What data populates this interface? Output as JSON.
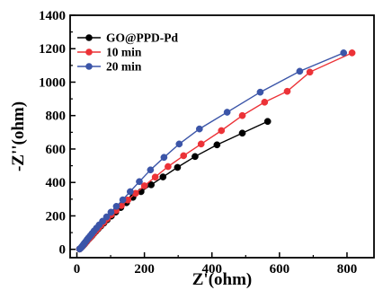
{
  "chart_data": {
    "type": "scatter",
    "xlabel": "Z'(ohm)",
    "ylabel": "-Z''(ohm)",
    "xlim": [
      -20,
      880
    ],
    "ylim": [
      -50,
      1400
    ],
    "xticks": [
      "0",
      "200",
      "400",
      "600",
      "800"
    ],
    "yticks": [
      "0",
      "200",
      "400",
      "600",
      "800",
      "1000",
      "1200",
      "1400"
    ],
    "xtick_values": [
      0,
      200,
      400,
      600,
      800
    ],
    "ytick_values": [
      0,
      200,
      400,
      600,
      800,
      1000,
      1200,
      1400
    ],
    "legend_position": "top-left",
    "series": [
      {
        "name": "GO@PPD-Pd",
        "color": "#000000",
        "x": [
          8,
          10,
          12,
          14,
          16,
          18,
          20,
          22,
          25,
          28,
          31,
          35,
          40,
          45,
          50,
          56,
          63,
          71,
          80,
          90,
          102,
          115,
          130,
          147,
          166,
          190,
          220,
          255,
          298,
          350,
          415,
          490,
          565
        ],
        "y": [
          2,
          5,
          9,
          13,
          17,
          21,
          26,
          31,
          37,
          44,
          52,
          61,
          71,
          82,
          94,
          107,
          122,
          139,
          157,
          177,
          199,
          223,
          250,
          279,
          311,
          345,
          386,
          433,
          490,
          555,
          625,
          695,
          765
        ]
      },
      {
        "name": "10 min",
        "color": "#ec3237",
        "x": [
          8,
          10,
          12,
          14,
          16,
          18,
          20,
          22,
          25,
          28,
          31,
          35,
          40,
          45,
          50,
          56,
          63,
          71,
          80,
          90,
          102,
          116,
          132,
          151,
          174,
          200,
          232,
          270,
          316,
          368,
          428,
          490,
          556,
          623,
          690,
          815
        ],
        "y": [
          2,
          5,
          9,
          13,
          17,
          22,
          27,
          32,
          38,
          45,
          53,
          62,
          72,
          84,
          96,
          110,
          125,
          143,
          162,
          183,
          207,
          232,
          262,
          295,
          335,
          380,
          432,
          495,
          560,
          630,
          710,
          800,
          880,
          945,
          1060,
          1175
        ]
      },
      {
        "name": "20 min",
        "color": "#3b55a8",
        "x": [
          8,
          10,
          12,
          14,
          16,
          18,
          20,
          22,
          25,
          28,
          31,
          35,
          40,
          45,
          51,
          58,
          66,
          76,
          88,
          101,
          117,
          136,
          158,
          185,
          218,
          258,
          303,
          363,
          445,
          543,
          660,
          790
        ],
        "y": [
          2,
          5,
          9,
          14,
          19,
          24,
          30,
          36,
          43,
          51,
          60,
          70,
          82,
          95,
          110,
          127,
          146,
          168,
          194,
          222,
          257,
          296,
          345,
          405,
          475,
          550,
          630,
          720,
          820,
          940,
          1065,
          1175
        ]
      }
    ]
  }
}
